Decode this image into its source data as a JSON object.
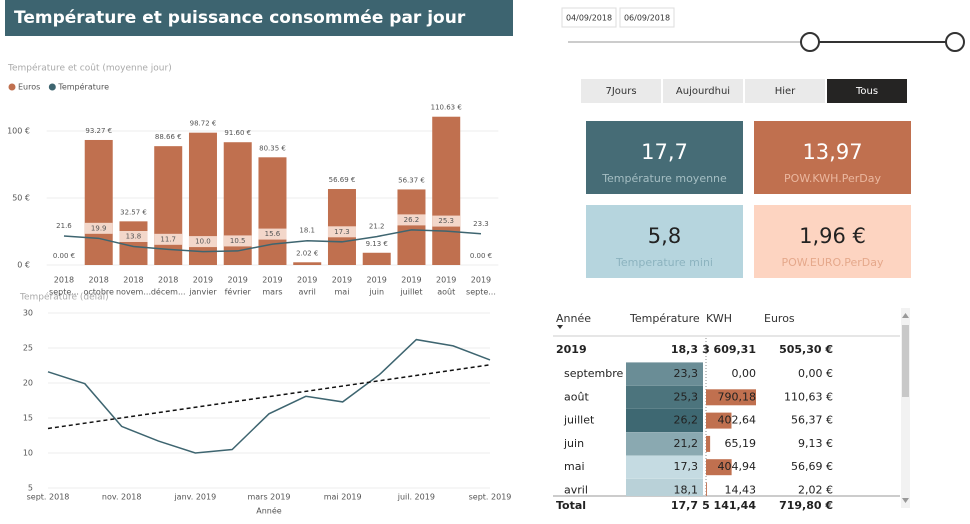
{
  "header": {
    "title": "Température et puissance consommée par jour"
  },
  "chart_data": [
    {
      "type": "bar",
      "title": "Température et coût (moyenne jour)",
      "categories": [
        "septe...",
        "octobre",
        "novem...",
        "décem...",
        "janvier",
        "février",
        "mars",
        "avril",
        "mai",
        "juin",
        "juillet",
        "août",
        "septe..."
      ],
      "category_years": [
        "2018",
        "2018",
        "2018",
        "2018",
        "2019",
        "2019",
        "2019",
        "2019",
        "2019",
        "2019",
        "2019",
        "2019",
        "2019"
      ],
      "series": [
        {
          "name": "Euros",
          "color": "#c0704f",
          "values": [
            0.0,
            93.27,
            32.57,
            88.66,
            98.72,
            91.6,
            80.35,
            2.02,
            56.69,
            9.13,
            56.37,
            110.63,
            0.0
          ],
          "value_labels": [
            "0.00 €",
            "93.27 €",
            "32.57 €",
            "88.66 €",
            "98.72 €",
            "91.60 €",
            "80.35 €",
            "2.02 €",
            "56.69 €",
            "9.13 €",
            "56.37 €",
            "110.63 €",
            "0.00 €"
          ]
        },
        {
          "name": "Température",
          "type": "line",
          "color": "#3e6570",
          "values": [
            21.6,
            19.9,
            13.8,
            11.7,
            10.0,
            10.5,
            15.6,
            18.1,
            17.3,
            21.2,
            26.2,
            25.3,
            23.3
          ],
          "value_labels": [
            "21.6",
            "19.9",
            "13.8",
            "11.7",
            "10.0",
            "10.5",
            "15.6",
            "18.1",
            "17.3",
            "21.2",
            "26.2",
            "25.3",
            "23.3"
          ]
        }
      ],
      "ylim": [
        0,
        113.4
      ],
      "yticks": [
        {
          "value": 0,
          "label": "0 €"
        },
        {
          "value": 50,
          "label": "50 €"
        },
        {
          "value": 100,
          "label": "100 €"
        }
      ],
      "grid": true
    },
    {
      "type": "line",
      "title": "Température (délai)",
      "xlabel": "Année",
      "categories": [
        "sept. 2018",
        null,
        "nov. 2018",
        null,
        "janv. 2019",
        null,
        "mars 2019",
        null,
        "mai 2019",
        null,
        "juil. 2019",
        null,
        "sept. 2019"
      ],
      "series": [
        {
          "name": "Température",
          "color": "#3e6570",
          "values": [
            21.6,
            19.9,
            13.8,
            11.7,
            10.0,
            10.5,
            15.6,
            18.1,
            17.3,
            21.2,
            26.2,
            25.3,
            23.3
          ]
        }
      ],
      "trend": [
        13.5,
        22.6
      ],
      "ylim": [
        5,
        30
      ],
      "yticks": [
        5,
        10,
        15,
        20,
        25,
        30
      ],
      "grid": true
    }
  ],
  "date_range": {
    "start": "04/09/2018",
    "end": "06/09/2018"
  },
  "period_buttons": {
    "items": [
      "7Jours",
      "Aujourdhui",
      "Hier",
      "Tous"
    ],
    "selected": 3
  },
  "cards": [
    {
      "value": "17,7",
      "label": "Température moyenne",
      "color": "#466c76"
    },
    {
      "value": "13,97",
      "label": "POW.KWH.PerDay",
      "color": "#c0704f"
    },
    {
      "value": "5,8",
      "label": "Temperature mini",
      "color": "#b6d5de"
    },
    {
      "value": "1,96 €",
      "label": "POW.EURO.PerDay",
      "color": "#fdd4c1"
    }
  ],
  "table": {
    "headers": [
      "Année",
      "Température",
      "KWH",
      "Euros"
    ],
    "group": {
      "label": "2019",
      "temperature": "18,3",
      "kwh": "3 609,31",
      "euros": "505,30 €"
    },
    "rows": [
      {
        "label": "septembre",
        "temperature": {
          "value": 23.3,
          "label": "23,3"
        },
        "kwh": {
          "value": 0,
          "label": "0,00"
        },
        "euros": "0,00 €"
      },
      {
        "label": "août",
        "temperature": {
          "value": 25.3,
          "label": "25,3"
        },
        "kwh": {
          "value": 790.18,
          "label": "790,18"
        },
        "euros": "110,63 €"
      },
      {
        "label": "juillet",
        "temperature": {
          "value": 26.2,
          "label": "26,2"
        },
        "kwh": {
          "value": 402.64,
          "label": "402,64"
        },
        "euros": "56,37 €"
      },
      {
        "label": "juin",
        "temperature": {
          "value": 21.2,
          "label": "21,2"
        },
        "kwh": {
          "value": 65.19,
          "label": "65,19"
        },
        "euros": "9,13 €"
      },
      {
        "label": "mai",
        "temperature": {
          "value": 17.3,
          "label": "17,3"
        },
        "kwh": {
          "value": 404.94,
          "label": "404,94"
        },
        "euros": "56,69 €"
      },
      {
        "label": "avril",
        "temperature": {
          "value": 18.1,
          "label": "18,1"
        },
        "kwh": {
          "value": 14.43,
          "label": "14,43"
        },
        "euros": "2,02 €"
      }
    ],
    "total": {
      "label": "Total",
      "temperature": "17,7",
      "kwh": "5 141,44",
      "euros": "719,80 €"
    }
  }
}
